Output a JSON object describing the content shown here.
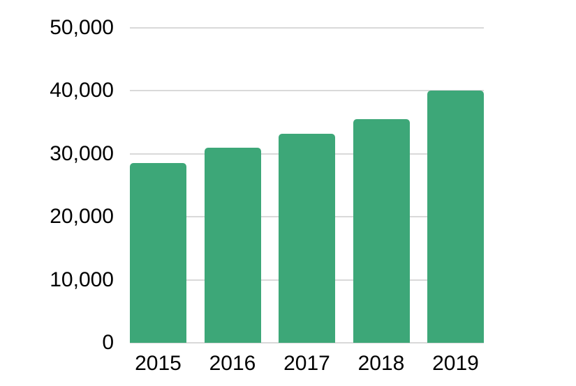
{
  "chart_data": {
    "type": "bar",
    "categories": [
      "2015",
      "2016",
      "2017",
      "2018",
      "2019"
    ],
    "values": [
      28500,
      31000,
      33200,
      35500,
      40000
    ],
    "xlabel": "",
    "ylabel": "",
    "ylim": [
      0,
      50000
    ],
    "y_ticks": [
      0,
      10000,
      20000,
      30000,
      40000,
      50000
    ],
    "y_tick_labels": [
      "0",
      "10,000",
      "20,000",
      "30,000",
      "40,000",
      "50,000"
    ],
    "grid": "horizontal",
    "legend": "none",
    "colors": {
      "bar": "#3da778",
      "gridline": "#d9d9d9",
      "axis_text": "#000000",
      "background": "#ffffff"
    }
  }
}
